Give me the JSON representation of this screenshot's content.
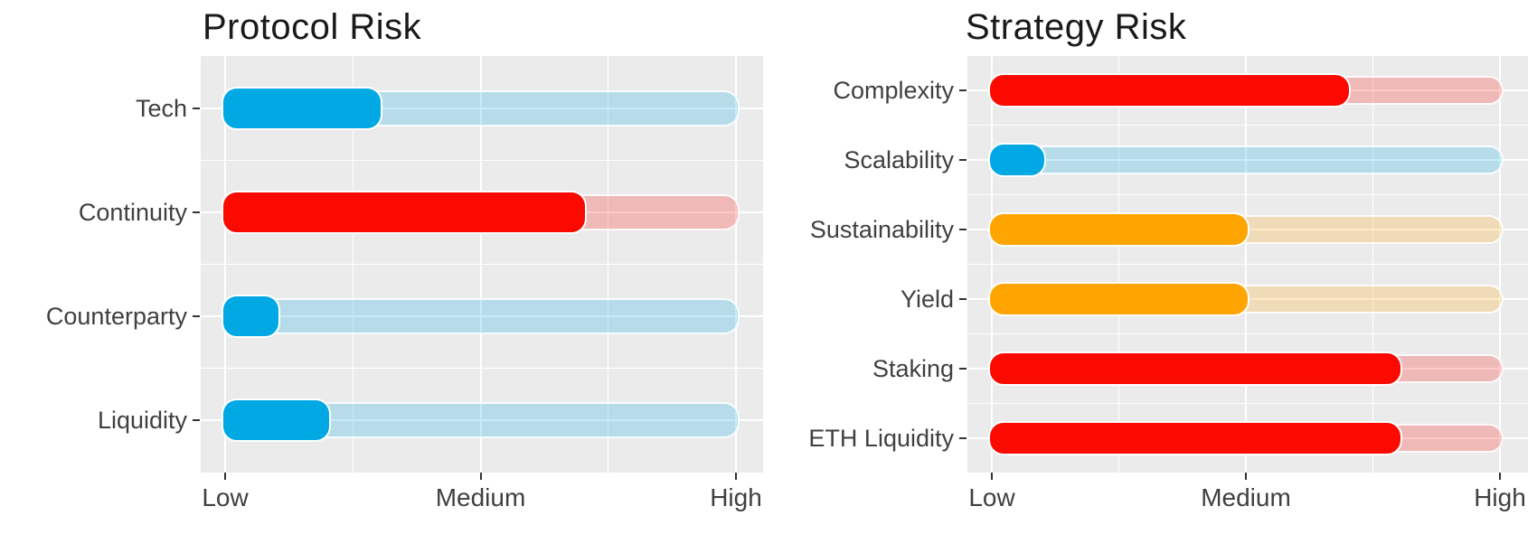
{
  "figure": {
    "background": "#FFFFFF",
    "description": "Two horizontal rounded-bar risk charts on gray panels with white gridlines"
  },
  "palette": {
    "low_risk": "#00A9E4",
    "medium_risk": "#FFA502",
    "high_risk": "#FA0A00",
    "track_alpha": 0.22,
    "panel_background": "#EBEBEB",
    "gridline": "#FFFFFF",
    "axis_text": "#404040",
    "title_text": "#1A1A1A",
    "tick_mark": "#333333"
  },
  "chart_data": [
    {
      "type": "bar",
      "orientation": "horizontal",
      "title": "Protocol Risk",
      "categories": [
        "Tech",
        "Continuity",
        "Counterparty",
        "Liquidity"
      ],
      "values": [
        1.6,
        2.4,
        1.2,
        1.4
      ],
      "levels": [
        "low",
        "high",
        "low",
        "low"
      ],
      "x_tick_labels": [
        "Low",
        "Medium",
        "High"
      ],
      "x_tick_values": [
        1,
        2,
        3
      ],
      "xlim": [
        1,
        3
      ],
      "track_range": [
        1,
        3
      ],
      "legend_position": "none",
      "grid": "on"
    },
    {
      "type": "bar",
      "orientation": "horizontal",
      "title": "Strategy Risk",
      "categories": [
        "Complexity",
        "Scalability",
        "Sustainability",
        "Yield",
        "Staking",
        "ETH Liquidity"
      ],
      "values": [
        2.4,
        1.2,
        2.0,
        2.0,
        2.6,
        2.6
      ],
      "levels": [
        "high",
        "low",
        "medium",
        "medium",
        "high",
        "high"
      ],
      "x_tick_labels": [
        "Low",
        "Medium",
        "High"
      ],
      "x_tick_values": [
        1,
        2,
        3
      ],
      "xlim": [
        1,
        3
      ],
      "track_range": [
        1,
        3
      ],
      "legend_position": "none",
      "grid": "on"
    }
  ]
}
